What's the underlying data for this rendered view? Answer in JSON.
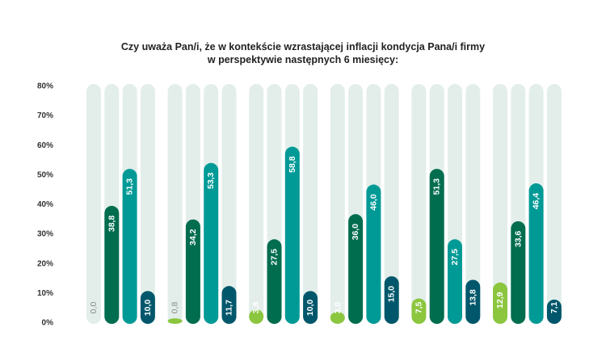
{
  "chart_data": {
    "type": "bar",
    "title_lines": [
      "Czy uważa Pan/i, że w kontekście wzrastającej inflacji kondycja Pana/i firmy",
      "w perspektywie następnych 6 miesięcy:"
    ],
    "ylim": [
      0,
      80
    ],
    "yticks": [
      "0%",
      "10%",
      "20%",
      "30%",
      "40%",
      "50%",
      "60%",
      "70%",
      "80%"
    ],
    "xlabel": "",
    "ylabel": "",
    "grid": false,
    "groups": 6,
    "series": [
      {
        "color": "#8cc63f",
        "values": [
          0.0,
          0.8,
          3.8,
          3.0,
          7.5,
          12.9
        ],
        "labels": [
          "0,0",
          "0,8",
          "3,8",
          "3,0",
          "7,5",
          "12,9"
        ]
      },
      {
        "color": "#006d4f",
        "values": [
          38.8,
          34.2,
          27.5,
          36.0,
          51.3,
          33.6
        ],
        "labels": [
          "38,8",
          "34,2",
          "27,5",
          "36,0",
          "51,3",
          "33,6"
        ]
      },
      {
        "color": "#009a96",
        "values": [
          51.3,
          53.3,
          58.8,
          46.0,
          27.5,
          46.4
        ],
        "labels": [
          "51,3",
          "53,3",
          "58,8",
          "46,0",
          "27,5",
          "46,4"
        ]
      },
      {
        "color": "#00576b",
        "values": [
          10.0,
          11.7,
          10.0,
          15.0,
          13.8,
          7.1
        ],
        "labels": [
          "10,0",
          "11,7",
          "10,0",
          "15,0",
          "13,8",
          "7,1"
        ]
      }
    ],
    "track_color": "#e3eeea"
  }
}
